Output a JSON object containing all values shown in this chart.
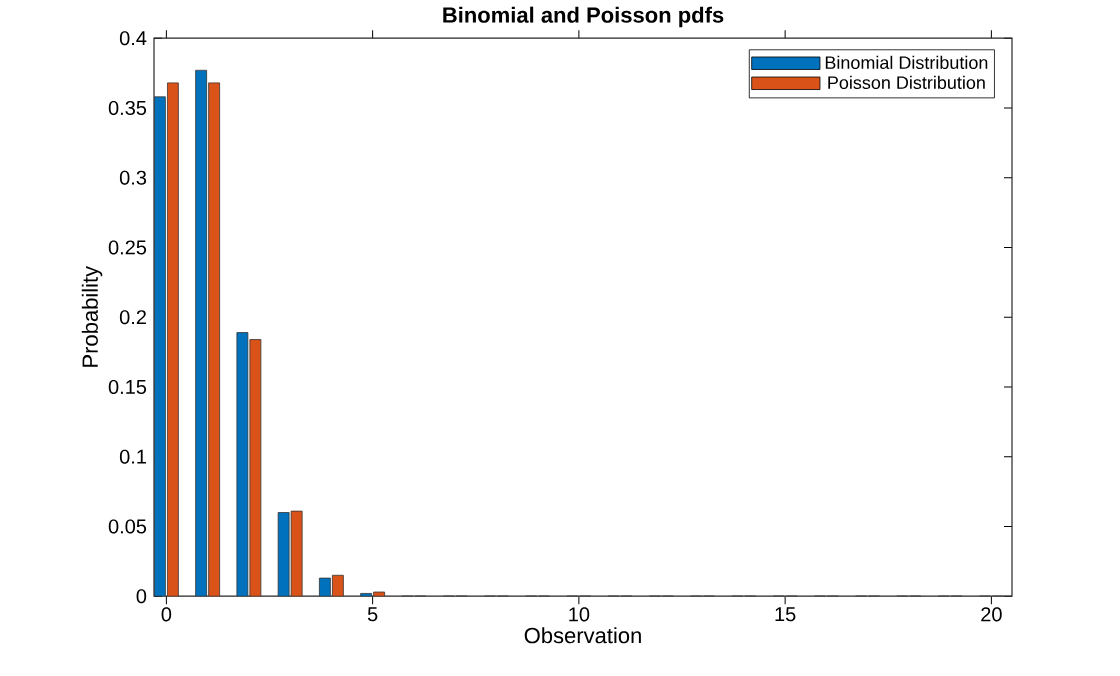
{
  "chart_data": {
    "type": "bar",
    "title": "Binomial and Poisson pdfs",
    "xlabel": "Observation",
    "ylabel": "Probability",
    "x": [
      0,
      1,
      2,
      3,
      4,
      5,
      6,
      7,
      8,
      9,
      10,
      11,
      12,
      13,
      14,
      15,
      16,
      17,
      18,
      19,
      20
    ],
    "series": [
      {
        "name": "Binomial Distribution",
        "color": "#0072bd",
        "values": [
          0.358,
          0.377,
          0.189,
          0.06,
          0.013,
          0.002,
          0,
          0,
          0,
          0,
          0,
          0,
          0,
          0,
          0,
          0,
          0,
          0,
          0,
          0,
          0
        ]
      },
      {
        "name": "Poisson Distribution",
        "color": "#d95319",
        "values": [
          0.368,
          0.368,
          0.184,
          0.061,
          0.015,
          0.003,
          0,
          0,
          0,
          0,
          0,
          0,
          0,
          0,
          0,
          0,
          0,
          0,
          0,
          0,
          0
        ]
      }
    ],
    "xlim": [
      -0.3,
      20.5
    ],
    "ylim": [
      0,
      0.4
    ],
    "xticks": [
      0,
      5,
      10,
      15,
      20
    ],
    "yticks": [
      0,
      0.05,
      0.1,
      0.15,
      0.2,
      0.25,
      0.3,
      0.35,
      0.4
    ],
    "legend": "top right"
  }
}
